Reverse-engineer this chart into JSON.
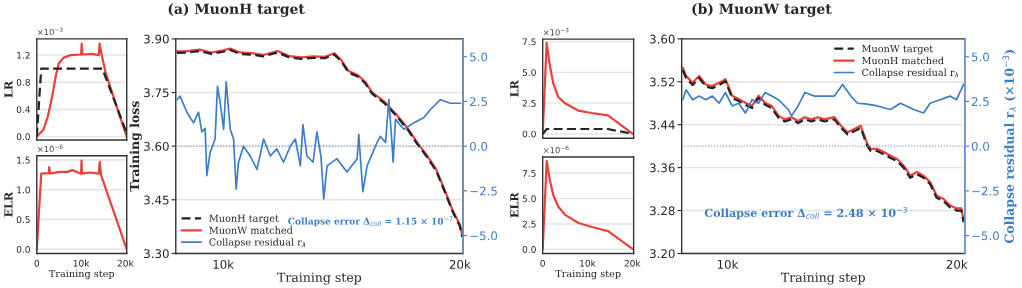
{
  "chart_data": [
    {
      "type": "line",
      "ylabel": "LR",
      "annotations": [
        "×10$^{−3}$"
      ],
      "xlim": [
        0,
        20300
      ],
      "ylim": [
        -0.05,
        1.44
      ],
      "xticks": [
        {
          "value": 0,
          "label": null
        },
        {
          "value": 10000,
          "label": null
        },
        {
          "value": 20000,
          "label": null
        }
      ],
      "yticks": [
        {
          "value": 0,
          "label": "0.0"
        },
        0.4,
        0.8,
        1.2
      ],
      "grid": "y",
      "tick_labels": "y",
      "series": [
        {
          "color": "#222222",
          "line_style": "dashed",
          "x": [
            0,
            1000,
            14800,
            20300
          ],
          "values": [
            0,
            1.0,
            1.0,
            0.05
          ]
        },
        {
          "color": "#e8423f",
          "line_style": "solid",
          "x": [
            0,
            1500,
            2500,
            3500,
            4300,
            5000,
            6000,
            7500,
            10000,
            10140,
            10300,
            12500,
            14000,
            14190,
            14600,
            15500,
            17000,
            18500,
            20300
          ],
          "values": [
            0,
            0.1,
            0.3,
            0.6,
            0.9,
            1.08,
            1.16,
            1.2,
            1.21,
            1.37,
            1.21,
            1.22,
            1.2,
            1.37,
            1.22,
            0.95,
            0.65,
            0.35,
            0.0
          ]
        }
      ]
    },
    {
      "type": "line",
      "ylabel": "ELR",
      "xlabel": "Training step",
      "annotations": [
        "×10$^{−6}$"
      ],
      "xlim": [
        0,
        20300
      ],
      "ylim": [
        -0.07,
        1.57
      ],
      "xticks": [
        0,
        {
          "value": 10000,
          "label": "10k"
        },
        {
          "value": 20000,
          "label": "20k"
        }
      ],
      "yticks": [
        {
          "value": 0,
          "label": "0.0"
        },
        0.5,
        {
          "value": 1,
          "label": "1.0"
        },
        1.5
      ],
      "grid": "y",
      "series": [
        {
          "color": "#e8423f",
          "line_style": "solid",
          "x": [
            0,
            1000,
            2700,
            2800,
            3000,
            5000,
            7000,
            8000,
            10000,
            10100,
            10200,
            12000,
            14000,
            14200,
            14500,
            20300
          ],
          "values": [
            0,
            1.27,
            1.28,
            1.38,
            1.27,
            1.3,
            1.3,
            1.33,
            1.27,
            1.49,
            1.27,
            1.29,
            1.27,
            1.47,
            1.25,
            0.0
          ]
        }
      ]
    },
    {
      "type": "line",
      "title": "(a) MuonH target",
      "xlabel": "Training step",
      "ylabel": "Training loss",
      "annotations": [
        "Collapse error Δ$_{coll}$ = 1.15 × 10$^{−7}$"
      ],
      "xlim": [
        8000,
        20130
      ],
      "ylim": [
        3.3,
        3.9
      ],
      "xticks": [
        {
          "value": 10000,
          "label": "10k"
        },
        {
          "value": 20000,
          "label": "20k"
        }
      ],
      "yticks": [
        {
          "value": 3.3,
          "label": "3.30"
        },
        3.45,
        {
          "value": 3.6,
          "label": "3.60"
        },
        3.75,
        {
          "value": 3.9,
          "label": "3.90"
        }
      ],
      "y2lim": [
        -6,
        6
      ],
      "y2ticks": [
        {
          "value": -5,
          "label": "−5.0"
        },
        {
          "value": -2.5,
          "label": "−2.5"
        },
        {
          "value": 0,
          "label": "0.0"
        },
        2.5,
        {
          "value": 5,
          "label": "5.0"
        }
      ],
      "grid": "y",
      "legend": "bottom left",
      "ref_lines": [
        {
          "axis": "y2",
          "value": 0,
          "label": null,
          "color": "#7a9cc6",
          "line_style": "dotted"
        }
      ],
      "series": [
        {
          "name": "MuonH target",
          "color": "#222222",
          "line_style": "dashed",
          "x": [
            8050,
            8500,
            9000,
            9500,
            10000,
            10300,
            10700,
            11200,
            11700,
            12300,
            12800,
            13300,
            13800,
            14300,
            14700,
            15000,
            15300,
            15700,
            16000,
            16300,
            16800,
            17300,
            17800,
            18200,
            18600,
            19000,
            19400,
            19700,
            20000,
            20100
          ],
          "values": [
            3.861,
            3.862,
            3.866,
            3.858,
            3.864,
            3.869,
            3.858,
            3.856,
            3.851,
            3.862,
            3.848,
            3.844,
            3.847,
            3.846,
            3.856,
            3.836,
            3.806,
            3.794,
            3.776,
            3.746,
            3.721,
            3.686,
            3.646,
            3.606,
            3.571,
            3.531,
            3.466,
            3.416,
            3.376,
            3.346
          ]
        },
        {
          "name": "MuonW matched",
          "color": "#e8423f",
          "line_style": "solid",
          "x": [
            8050,
            8500,
            9000,
            9500,
            10000,
            10300,
            10700,
            11200,
            11700,
            12300,
            12800,
            13300,
            13800,
            14300,
            14700,
            15000,
            15300,
            15700,
            16000,
            16300,
            16800,
            17300,
            17800,
            18200,
            18600,
            19000,
            19400,
            19700,
            20000,
            20100
          ],
          "values": [
            3.865,
            3.866,
            3.87,
            3.862,
            3.868,
            3.873,
            3.862,
            3.86,
            3.855,
            3.866,
            3.852,
            3.848,
            3.851,
            3.85,
            3.86,
            3.84,
            3.81,
            3.798,
            3.78,
            3.75,
            3.725,
            3.69,
            3.65,
            3.61,
            3.575,
            3.535,
            3.47,
            3.42,
            3.38,
            3.35
          ]
        },
        {
          "name": "Collapse residual r$_{λ}$",
          "color": "#3a7dc9",
          "line_style": "solid",
          "axis": "y2",
          "x": [
            8050,
            8180,
            8470,
            8750,
            8960,
            9100,
            9240,
            9310,
            9450,
            9660,
            9760,
            9880,
            10020,
            10130,
            10300,
            10440,
            10550,
            10650,
            10860,
            11140,
            11430,
            11710,
            11990,
            12270,
            12550,
            12840,
            13050,
            13260,
            13370,
            13540,
            13800,
            13960,
            14130,
            14250,
            14390,
            14810,
            15230,
            15660,
            15730,
            15900,
            16080,
            16500,
            16640,
            16860,
            17000,
            17140,
            17180,
            17280,
            17630,
            18050,
            18480,
            18760,
            19180,
            19600,
            20030
          ],
          "values": [
            2.6,
            2.8,
            1.9,
            1.3,
            1.9,
            0.8,
            1.0,
            -1.65,
            -0.35,
            0.4,
            3.35,
            2.4,
            0.95,
            3.6,
            0.95,
            0.4,
            -2.4,
            -0.9,
            0.0,
            -0.55,
            -1.3,
            0.4,
            -0.55,
            -0.15,
            -0.9,
            0.0,
            0.4,
            -1.1,
            1.2,
            -0.55,
            -0.9,
            0.8,
            -0.55,
            -2.95,
            -1.1,
            -0.7,
            -1.45,
            -0.7,
            0.65,
            -2.55,
            -1.1,
            0.2,
            0.55,
            0.2,
            2.6,
            0.0,
            -0.9,
            1.5,
            0.95,
            1.3,
            1.6,
            2.05,
            2.6,
            2.4,
            2.4
          ]
        }
      ]
    },
    {
      "type": "line",
      "ylabel": "LR",
      "annotations": [
        "×10$^{−3}$"
      ],
      "xlim": [
        0,
        20300
      ],
      "ylim": [
        -0.35,
        7.7
      ],
      "xticks": [
        {
          "value": 0,
          "label": null
        },
        {
          "value": 10000,
          "label": null
        },
        {
          "value": 20000,
          "label": null
        }
      ],
      "yticks": [
        {
          "value": 0,
          "label": "0.0"
        },
        2.5,
        {
          "value": 5,
          "label": "5.0"
        },
        7.5
      ],
      "grid": "y",
      "tick_labels": "y",
      "series": [
        {
          "color": "#222222",
          "line_style": "dashed",
          "x": [
            0,
            900,
            14500,
            20300
          ],
          "values": [
            0,
            0.4,
            0.4,
            0.0
          ]
        },
        {
          "color": "#e8423f",
          "line_style": "solid",
          "x": [
            0,
            890,
            1630,
            2370,
            3480,
            4960,
            7920,
            10880,
            14580,
            20130
          ],
          "values": [
            0,
            7.4,
            5.5,
            4.1,
            3.0,
            2.5,
            1.9,
            1.7,
            1.5,
            0.0
          ]
        }
      ]
    },
    {
      "type": "line",
      "ylabel": "ELR",
      "xlabel": "Training step",
      "annotations": [
        "×10$^{−6}$"
      ],
      "xlim": [
        0,
        20300
      ],
      "ylim": [
        -0.4,
        9.1
      ],
      "xticks": [
        0,
        {
          "value": 10000,
          "label": "10k"
        },
        {
          "value": 20000,
          "label": "20k"
        }
      ],
      "yticks": [
        {
          "value": 0,
          "label": "0.0"
        },
        2.5,
        {
          "value": 5,
          "label": "5.0"
        },
        7.5
      ],
      "grid": "y",
      "series": [
        {
          "color": "#e8423f",
          "line_style": "solid",
          "x": [
            0,
            900,
            1600,
            2400,
            3500,
            5000,
            8000,
            11000,
            14600,
            20200
          ],
          "values": [
            0,
            8.7,
            6.8,
            5.3,
            4.2,
            3.4,
            2.6,
            2.2,
            1.8,
            0.0
          ]
        }
      ]
    },
    {
      "type": "line",
      "title": "(b) MuonW target",
      "xlabel": "Training step",
      "y2label": "Collapse residual r$_{λ}$ (×10$^{−3}$)",
      "annotations": [
        "Collapse error Δ$_{coll}$ = 2.48 × 10$^{−3}$"
      ],
      "xlim": [
        8000,
        20350
      ],
      "ylim": [
        3.2,
        3.6
      ],
      "xticks": [
        {
          "value": 10000,
          "label": "10k"
        },
        {
          "value": 20000,
          "label": "20k"
        }
      ],
      "yticks": [
        {
          "value": 3.2,
          "label": "3.20"
        },
        3.28,
        3.36,
        3.44,
        3.52,
        {
          "value": 3.6,
          "label": "3.60"
        }
      ],
      "y2lim": [
        -6,
        6
      ],
      "y2ticks": [
        {
          "value": -5,
          "label": "−5.0"
        },
        {
          "value": -2.5,
          "label": "−2.5"
        },
        {
          "value": 0,
          "label": "0.0"
        },
        2.5,
        {
          "value": 5,
          "label": "5.0"
        }
      ],
      "grid": "y",
      "legend": "top right",
      "ref_lines": [
        {
          "axis": "y2",
          "value": 0,
          "label": null,
          "color": "#7a9cc6",
          "line_style": "dotted"
        }
      ],
      "series": [
        {
          "name": "MuonW target",
          "color": "#222222",
          "line_style": "dashed",
          "x": [
            8050,
            8190,
            8480,
            8760,
            9050,
            9340,
            9630,
            9910,
            10200,
            10490,
            10780,
            11070,
            11350,
            11640,
            11930,
            12220,
            12500,
            12790,
            13080,
            13370,
            13660,
            13940,
            14230,
            14660,
            14950,
            15240,
            15530,
            15810,
            16100,
            16250,
            16530,
            16820,
            17110,
            17400,
            17680,
            17970,
            18260,
            18550,
            18840,
            19120,
            19410,
            19700,
            19990,
            20200,
            20300
          ],
          "values": [
            3.542,
            3.527,
            3.514,
            3.527,
            3.511,
            3.508,
            3.514,
            3.521,
            3.49,
            3.484,
            3.477,
            3.471,
            3.49,
            3.477,
            3.471,
            3.453,
            3.446,
            3.45,
            3.443,
            3.45,
            3.446,
            3.45,
            3.446,
            3.45,
            3.434,
            3.422,
            3.428,
            3.434,
            3.4,
            3.391,
            3.391,
            3.385,
            3.378,
            3.372,
            3.36,
            3.341,
            3.348,
            3.341,
            3.329,
            3.304,
            3.298,
            3.286,
            3.28,
            3.28,
            3.258
          ]
        },
        {
          "name": "MuonH matched",
          "color": "#e8423f",
          "line_style": "solid",
          "x": [
            8050,
            8190,
            8480,
            8760,
            9050,
            9340,
            9630,
            9910,
            10200,
            10490,
            10780,
            11070,
            11350,
            11640,
            11930,
            12220,
            12500,
            12790,
            13080,
            13370,
            13660,
            13940,
            14230,
            14660,
            14950,
            15240,
            15530,
            15810,
            16100,
            16250,
            16530,
            16820,
            17110,
            17400,
            17680,
            17970,
            18260,
            18550,
            18840,
            19120,
            19410,
            19700,
            19990,
            20200,
            20300
          ],
          "values": [
            3.546,
            3.531,
            3.518,
            3.531,
            3.515,
            3.512,
            3.518,
            3.525,
            3.494,
            3.488,
            3.481,
            3.475,
            3.494,
            3.481,
            3.475,
            3.457,
            3.45,
            3.454,
            3.447,
            3.454,
            3.45,
            3.454,
            3.45,
            3.454,
            3.438,
            3.426,
            3.432,
            3.438,
            3.404,
            3.395,
            3.395,
            3.389,
            3.382,
            3.376,
            3.364,
            3.345,
            3.352,
            3.345,
            3.333,
            3.308,
            3.302,
            3.29,
            3.284,
            3.284,
            3.262
          ]
        },
        {
          "name": "Collapse residual r$_{λ}$",
          "color": "#3a7dc9",
          "line_style": "solid",
          "axis": "y2",
          "x": [
            8050,
            8190,
            8480,
            8760,
            9050,
            9340,
            9630,
            9910,
            10200,
            10490,
            10780,
            11070,
            11350,
            11640,
            11930,
            12220,
            12650,
            12790,
            13080,
            13370,
            13800,
            14230,
            14660,
            15020,
            15380,
            15670,
            16100,
            16530,
            17110,
            17540,
            18120,
            18550,
            18840,
            19270,
            19700,
            19990,
            20300
          ],
          "values": [
            2.6,
            3.15,
            2.6,
            2.8,
            2.6,
            2.8,
            2.4,
            3.0,
            2.25,
            2.4,
            1.85,
            2.6,
            2.4,
            3.0,
            2.8,
            2.6,
            2.05,
            1.7,
            2.25,
            3.0,
            2.8,
            2.8,
            2.8,
            3.45,
            2.8,
            2.4,
            2.35,
            2.25,
            2.05,
            2.4,
            2.05,
            1.85,
            2.4,
            2.6,
            2.8,
            2.6,
            3.45
          ]
        }
      ]
    }
  ]
}
